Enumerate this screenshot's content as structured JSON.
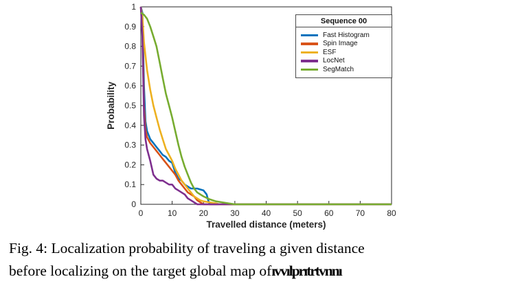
{
  "figure": {
    "caption_line1": "Fig. 4: Localization probability of traveling a given distance",
    "caption_line2": "before localizing on the target global map of",
    "caption_garbled_tail": "ıvvılprıtrtvnnı"
  },
  "chart_data": {
    "type": "line",
    "title": "",
    "legend_title": "Sequence 00",
    "legend_position": "top-right-inside",
    "xlabel": "Travelled distance (meters)",
    "ylabel": "Probability",
    "xlim": [
      0,
      80
    ],
    "ylim": [
      0,
      1
    ],
    "grid": false,
    "axis_color": "#262626",
    "x_ticks": [
      "0",
      "10",
      "20",
      "30",
      "40",
      "50",
      "60",
      "70",
      "80"
    ],
    "x_tick_values": [
      0,
      10,
      20,
      30,
      40,
      50,
      60,
      70,
      80
    ],
    "y_ticks": [
      "0",
      "0.1",
      "0.2",
      "0.3",
      "0.4",
      "0.5",
      "0.6",
      "0.7",
      "0.8",
      "0.9",
      "1"
    ],
    "y_tick_values": [
      0,
      0.1,
      0.2,
      0.3,
      0.4,
      0.5,
      0.6,
      0.7,
      0.8,
      0.9,
      1
    ],
    "series": [
      {
        "name": "Fast Histogram",
        "color": "#0072BD",
        "points": [
          [
            0,
            1
          ],
          [
            0.5,
            0.97
          ],
          [
            1,
            0.6
          ],
          [
            1.5,
            0.42
          ],
          [
            2,
            0.37
          ],
          [
            3,
            0.33
          ],
          [
            4,
            0.31
          ],
          [
            5,
            0.29
          ],
          [
            6,
            0.27
          ],
          [
            7,
            0.25
          ],
          [
            8,
            0.24
          ],
          [
            9,
            0.22
          ],
          [
            10,
            0.21
          ],
          [
            11,
            0.16
          ],
          [
            12,
            0.13
          ],
          [
            13,
            0.12
          ],
          [
            14,
            0.1
          ],
          [
            15,
            0.09
          ],
          [
            16,
            0.08
          ],
          [
            18,
            0.08
          ],
          [
            20,
            0.07
          ],
          [
            21,
            0.05
          ],
          [
            21.5,
            0.02
          ],
          [
            22,
            0
          ],
          [
            80,
            0
          ]
        ]
      },
      {
        "name": "Spin Image",
        "color": "#D95319",
        "points": [
          [
            0,
            1
          ],
          [
            0.5,
            0.9
          ],
          [
            1,
            0.5
          ],
          [
            1.5,
            0.38
          ],
          [
            2,
            0.34
          ],
          [
            3,
            0.31
          ],
          [
            4,
            0.29
          ],
          [
            5,
            0.27
          ],
          [
            6,
            0.25
          ],
          [
            7,
            0.23
          ],
          [
            8,
            0.21
          ],
          [
            9,
            0.19
          ],
          [
            10,
            0.17
          ],
          [
            11,
            0.15
          ],
          [
            12,
            0.12
          ],
          [
            13,
            0.1
          ],
          [
            14,
            0.08
          ],
          [
            15,
            0.06
          ],
          [
            16,
            0.05
          ],
          [
            17,
            0.04
          ],
          [
            18,
            0.02
          ],
          [
            19,
            0.01
          ],
          [
            20,
            0
          ],
          [
            80,
            0
          ]
        ]
      },
      {
        "name": "ESF",
        "color": "#EDB120",
        "points": [
          [
            0,
            1
          ],
          [
            0.5,
            0.95
          ],
          [
            1,
            0.82
          ],
          [
            2,
            0.68
          ],
          [
            3,
            0.58
          ],
          [
            4,
            0.5
          ],
          [
            5,
            0.44
          ],
          [
            6,
            0.38
          ],
          [
            7,
            0.33
          ],
          [
            8,
            0.28
          ],
          [
            9,
            0.25
          ],
          [
            10,
            0.22
          ],
          [
            11,
            0.18
          ],
          [
            12,
            0.15
          ],
          [
            13,
            0.12
          ],
          [
            14,
            0.1
          ],
          [
            15,
            0.08
          ],
          [
            16,
            0.06
          ],
          [
            17,
            0.04
          ],
          [
            18,
            0.03
          ],
          [
            19,
            0.02
          ],
          [
            20,
            0.015
          ],
          [
            22,
            0.01
          ],
          [
            24,
            0.005
          ],
          [
            25,
            0
          ],
          [
            80,
            0
          ]
        ]
      },
      {
        "name": "LocNet",
        "color": "#7E2F8E",
        "points": [
          [
            0,
            1
          ],
          [
            0.5,
            0.85
          ],
          [
            1,
            0.45
          ],
          [
            1.5,
            0.33
          ],
          [
            2,
            0.28
          ],
          [
            3,
            0.22
          ],
          [
            4,
            0.15
          ],
          [
            5,
            0.13
          ],
          [
            6,
            0.12
          ],
          [
            7,
            0.12
          ],
          [
            8,
            0.11
          ],
          [
            9,
            0.1
          ],
          [
            10,
            0.1
          ],
          [
            11,
            0.08
          ],
          [
            12,
            0.07
          ],
          [
            13,
            0.06
          ],
          [
            14,
            0.05
          ],
          [
            15,
            0.03
          ],
          [
            16,
            0.02
          ],
          [
            17,
            0.01
          ],
          [
            18,
            0
          ],
          [
            80,
            0
          ]
        ]
      },
      {
        "name": "SegMatch",
        "color": "#77AC30",
        "points": [
          [
            0,
            0.97
          ],
          [
            1,
            0.96
          ],
          [
            2,
            0.94
          ],
          [
            3,
            0.9
          ],
          [
            4,
            0.85
          ],
          [
            5,
            0.8
          ],
          [
            6,
            0.72
          ],
          [
            7,
            0.64
          ],
          [
            8,
            0.56
          ],
          [
            9,
            0.5
          ],
          [
            10,
            0.44
          ],
          [
            11,
            0.37
          ],
          [
            12,
            0.3
          ],
          [
            13,
            0.24
          ],
          [
            14,
            0.19
          ],
          [
            15,
            0.15
          ],
          [
            16,
            0.11
          ],
          [
            17,
            0.08
          ],
          [
            18,
            0.06
          ],
          [
            19,
            0.05
          ],
          [
            20,
            0.04
          ],
          [
            22,
            0.025
          ],
          [
            24,
            0.015
          ],
          [
            26,
            0.01
          ],
          [
            28,
            0.005
          ],
          [
            30,
            0
          ],
          [
            80,
            0
          ]
        ]
      }
    ]
  }
}
